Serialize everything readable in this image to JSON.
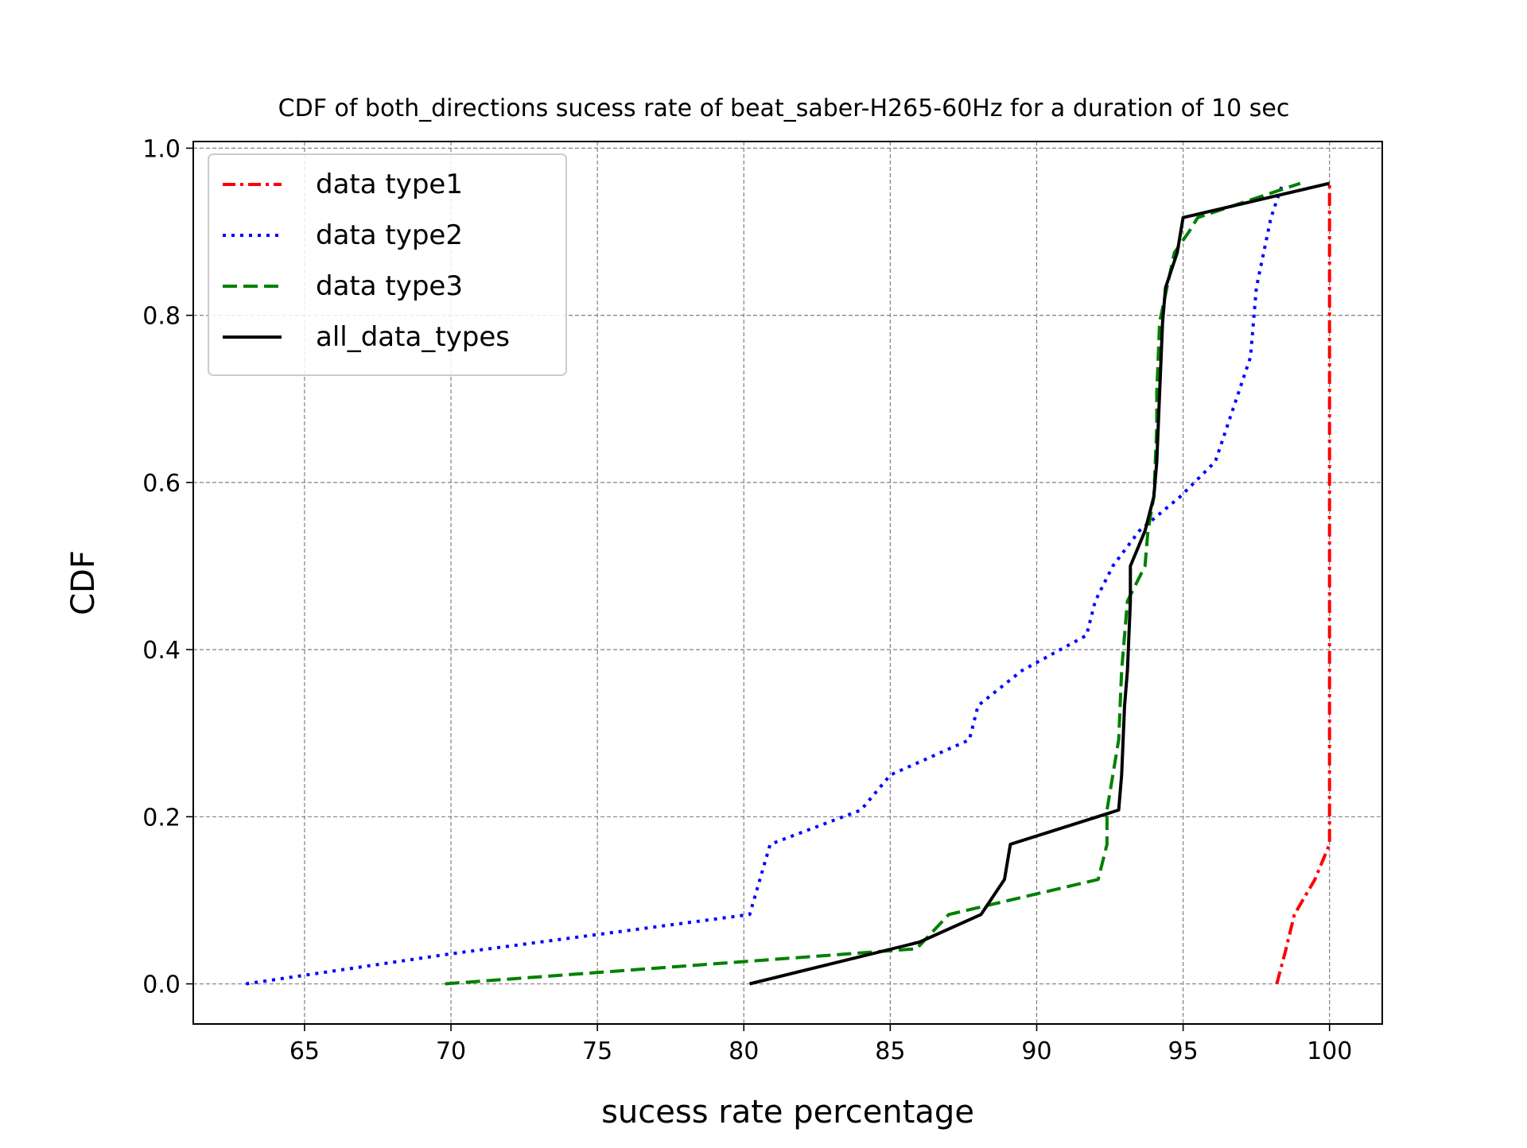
{
  "chart_data": {
    "type": "line",
    "title": "CDF of both_directions sucess rate of beat_saber-H265-60Hz for a duration of 10 sec",
    "xlabel": "sucess rate percentage",
    "ylabel": "CDF",
    "xlim": [
      61.2,
      101.8
    ],
    "ylim": [
      -0.048,
      1.008
    ],
    "xticks": [
      65,
      70,
      75,
      80,
      85,
      90,
      95,
      100
    ],
    "xtick_labels": [
      "65",
      "70",
      "75",
      "80",
      "85",
      "90",
      "95",
      "100"
    ],
    "yticks": [
      0.0,
      0.2,
      0.4,
      0.6,
      0.8,
      1.0
    ],
    "ytick_labels": [
      "0.0",
      "0.2",
      "0.4",
      "0.6",
      "0.8",
      "1.0"
    ],
    "grid": true,
    "legend_position": "top-left",
    "series": [
      {
        "name": "data type1",
        "color": "#ff0000",
        "style": "dashdot",
        "points": [
          [
            98.2,
            0.0
          ],
          [
            98.5,
            0.04
          ],
          [
            98.8,
            0.083
          ],
          [
            99.5,
            0.125
          ],
          [
            100.0,
            0.167
          ],
          [
            100.0,
            0.5
          ],
          [
            100.0,
            0.958
          ]
        ]
      },
      {
        "name": "data type2",
        "color": "#0000ff",
        "style": "dotted",
        "points": [
          [
            63.0,
            0.0
          ],
          [
            70.0,
            0.036
          ],
          [
            80.2,
            0.083
          ],
          [
            80.9,
            0.167
          ],
          [
            84.0,
            0.208
          ],
          [
            85.0,
            0.25
          ],
          [
            87.7,
            0.292
          ],
          [
            88.0,
            0.333
          ],
          [
            89.5,
            0.375
          ],
          [
            91.7,
            0.417
          ],
          [
            92.0,
            0.458
          ],
          [
            92.6,
            0.5
          ],
          [
            93.5,
            0.542
          ],
          [
            94.9,
            0.583
          ],
          [
            96.1,
            0.625
          ],
          [
            97.3,
            0.75
          ],
          [
            97.5,
            0.833
          ],
          [
            98.0,
            0.917
          ],
          [
            98.4,
            0.958
          ]
        ]
      },
      {
        "name": "data type3",
        "color": "#008000",
        "style": "dashed",
        "points": [
          [
            69.8,
            0.0
          ],
          [
            85.9,
            0.042
          ],
          [
            87.0,
            0.083
          ],
          [
            92.1,
            0.125
          ],
          [
            92.4,
            0.167
          ],
          [
            92.4,
            0.208
          ],
          [
            92.8,
            0.292
          ],
          [
            92.9,
            0.375
          ],
          [
            93.1,
            0.458
          ],
          [
            93.7,
            0.5
          ],
          [
            93.8,
            0.542
          ],
          [
            94.0,
            0.583
          ],
          [
            94.1,
            0.667
          ],
          [
            94.1,
            0.708
          ],
          [
            94.2,
            0.792
          ],
          [
            94.7,
            0.875
          ],
          [
            95.2,
            0.9
          ],
          [
            95.5,
            0.917
          ],
          [
            99.0,
            0.958
          ]
        ]
      },
      {
        "name": "all_data_types",
        "color": "#000000",
        "style": "solid",
        "points": [
          [
            80.2,
            0.0
          ],
          [
            86.0,
            0.05
          ],
          [
            88.1,
            0.083
          ],
          [
            88.9,
            0.125
          ],
          [
            89.1,
            0.167
          ],
          [
            92.8,
            0.208
          ],
          [
            92.9,
            0.25
          ],
          [
            93.0,
            0.333
          ],
          [
            93.1,
            0.375
          ],
          [
            93.2,
            0.458
          ],
          [
            93.2,
            0.5
          ],
          [
            93.7,
            0.542
          ],
          [
            94.0,
            0.583
          ],
          [
            94.1,
            0.625
          ],
          [
            94.2,
            0.708
          ],
          [
            94.3,
            0.792
          ],
          [
            94.4,
            0.833
          ],
          [
            94.8,
            0.875
          ],
          [
            95.0,
            0.917
          ],
          [
            100.0,
            0.958
          ]
        ]
      }
    ]
  }
}
